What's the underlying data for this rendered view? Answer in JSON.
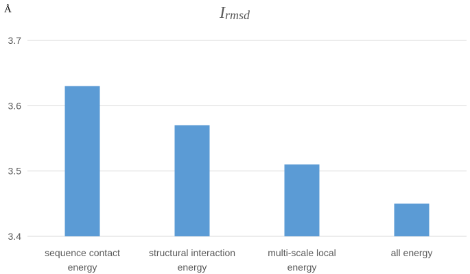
{
  "chart_data": {
    "type": "bar",
    "title_main": "I",
    "title_sub": "rmsd",
    "ylabel": "Å",
    "xlabel": "",
    "categories": [
      [
        "sequence contact",
        "energy"
      ],
      [
        "structural interaction",
        "energy"
      ],
      [
        "multi-scale local",
        "energy"
      ],
      [
        "all energy"
      ]
    ],
    "values": [
      3.63,
      3.57,
      3.51,
      3.45
    ],
    "ylim": [
      3.4,
      3.7
    ],
    "yticks": [
      "3.4",
      "3.5",
      "3.6",
      "3.7"
    ],
    "grid": true,
    "bar_color": "#5B9BD5",
    "grid_color": "#D9D9D9"
  }
}
